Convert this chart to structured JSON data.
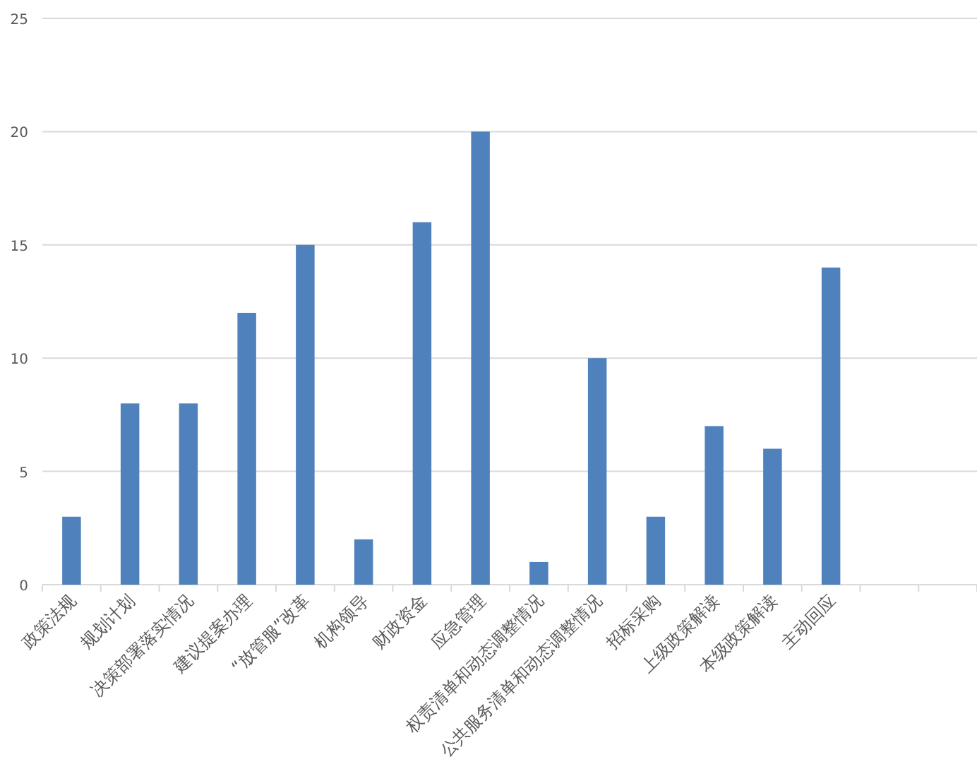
{
  "chart_data": {
    "type": "bar",
    "categories": [
      "政策法规",
      "规划计划",
      "决策部署落实情况",
      "建议提案办理",
      "“放管服”改革",
      "机构领导",
      "财政资金",
      "应急管理",
      "权责清单和动态调整情况",
      "公共服务清单和动态调整情况",
      "招标采购",
      "上级政策解读",
      "本级政策解读",
      "主动回应",
      null,
      null
    ],
    "values": [
      3,
      8,
      8,
      12,
      15,
      2,
      16,
      20,
      1,
      10,
      3,
      7,
      6,
      14,
      null,
      null
    ],
    "color": "#4f81bd",
    "ylim": [
      0,
      25
    ],
    "yticks": [
      0,
      5,
      10,
      15,
      20,
      25
    ],
    "grid": "y"
  }
}
